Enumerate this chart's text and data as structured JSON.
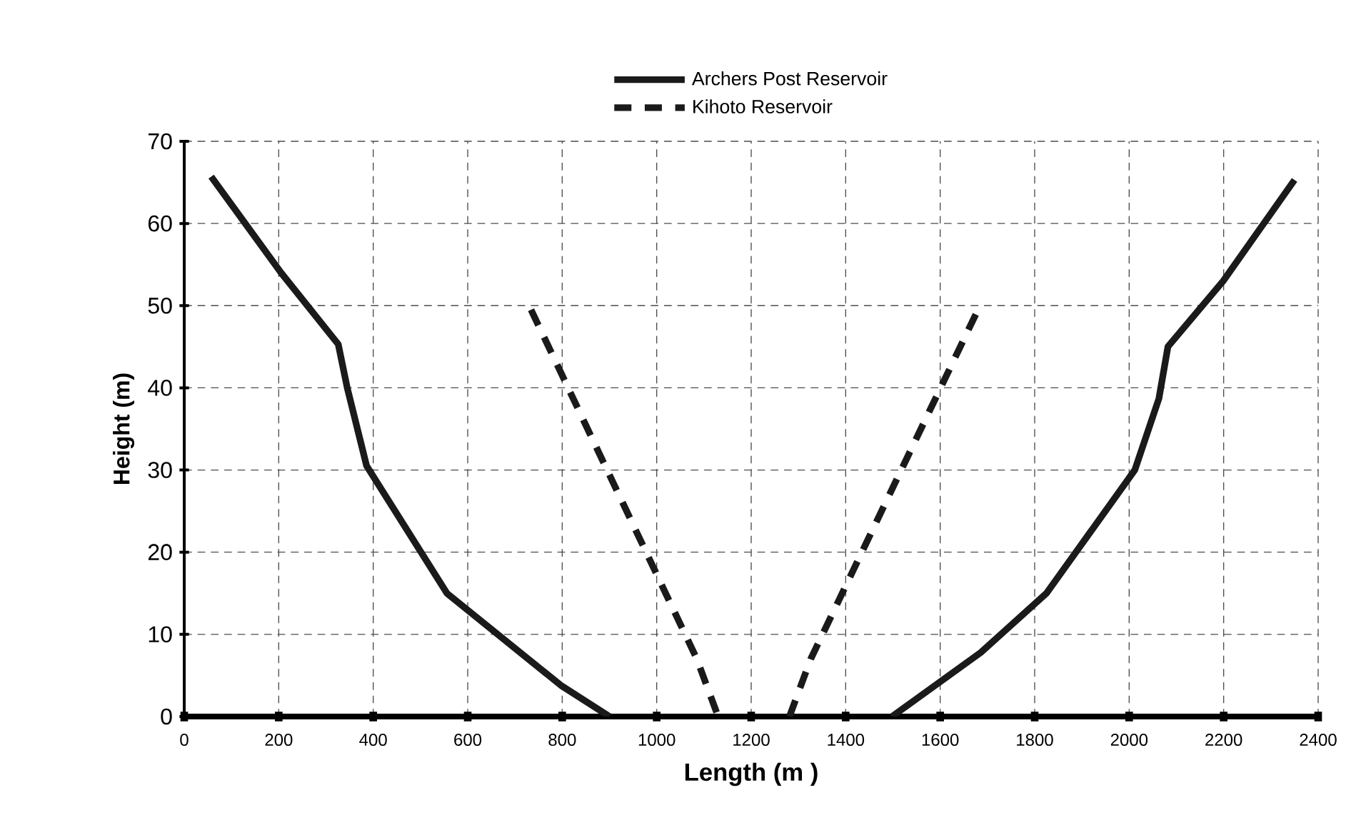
{
  "chart_data": {
    "type": "line",
    "xlabel": "Length (m )",
    "ylabel": "Height (m)",
    "xlim": [
      0,
      2400
    ],
    "xticks": [
      0,
      200,
      400,
      600,
      800,
      1000,
      1200,
      1400,
      1600,
      1800,
      2000,
      2200,
      2400
    ],
    "ylim": [
      0,
      70
    ],
    "yticks": [
      0,
      10,
      20,
      30,
      40,
      50,
      60,
      70
    ],
    "grid": true,
    "legend": "top",
    "marker": "none",
    "series": [
      {
        "name": "Archers Post Reservoir",
        "color": "#1a1a1a",
        "line_style": "solid",
        "x": [
          57,
          205,
          326,
          345,
          386,
          556,
          797,
          900,
          null,
          1498,
          1686,
          1825,
          2012,
          2063,
          2082,
          2199,
          2350
        ],
        "values": [
          65.7,
          54,
          45.3,
          40,
          30.5,
          15,
          3.8,
          0,
          null,
          0,
          7.8,
          15,
          30,
          38.7,
          45,
          53,
          65.3
        ]
      },
      {
        "name": "Kihoto Reservoir",
        "color": "#1a1a1a",
        "line_style": "dashed",
        "x": [
          734,
          1085,
          1130,
          null,
          1281,
          1326,
          1680
        ],
        "values": [
          49.5,
          7,
          0,
          null,
          0,
          7,
          49.5
        ]
      }
    ]
  }
}
